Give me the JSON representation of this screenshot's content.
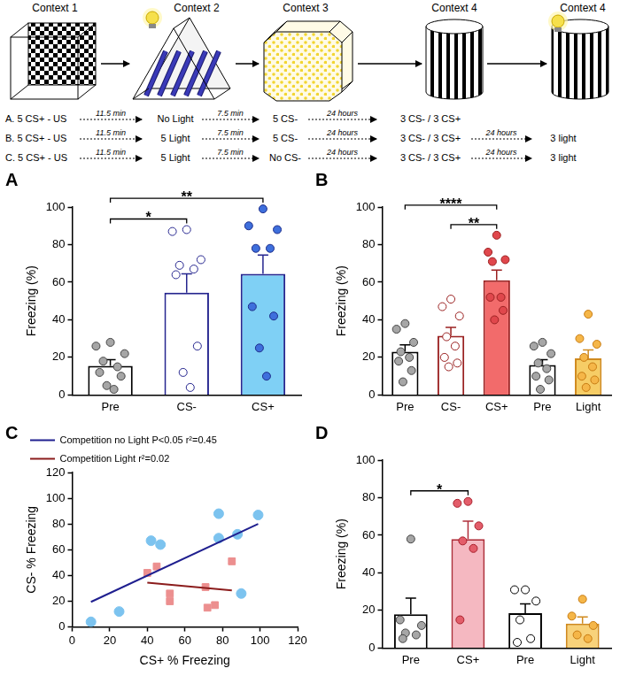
{
  "schematic": {
    "contexts": [
      "Context 1",
      "Context 2",
      "Context 3",
      "Context 4",
      "Context 4"
    ],
    "protocols": [
      {
        "steps": [
          "A. 5 CS+ - US",
          "11.5 min",
          "No Light",
          "7.5 min",
          "5 CS-",
          "24 hours",
          "3 CS- / 3 CS+"
        ]
      },
      {
        "steps": [
          "B. 5 CS+ - US",
          "11.5 min",
          "5 Light",
          "7.5 min",
          "5 CS-",
          "24 hours",
          "3 CS- / 3 CS+",
          "24 hours",
          "3 light"
        ]
      },
      {
        "steps": [
          "C. 5 CS+ - US",
          "11.5 min",
          "5 Light",
          "7.5 min",
          "No CS-",
          "24 hours",
          "3 CS- / 3 CS+",
          "24 hours",
          "3 light"
        ]
      }
    ]
  },
  "chart_data": [
    {
      "panel_label": "A",
      "type": "bar",
      "categories": [
        "Pre",
        "CS-",
        "CS+"
      ],
      "values": [
        15.5,
        54.5,
        64.5
      ],
      "errors": [
        3.3,
        10,
        10
      ],
      "points": [
        [
          28,
          26,
          22,
          18,
          15,
          12,
          10,
          5,
          3
        ],
        [
          88,
          87,
          72,
          69,
          67,
          64,
          26,
          12,
          4
        ],
        [
          99,
          90,
          88,
          78,
          78,
          47,
          42,
          25,
          10
        ]
      ],
      "colors": [
        "#ffffff",
        "#ffffff",
        "#7fd0f5"
      ],
      "y_label": "Freezing (%)",
      "ylim": [
        0,
        100
      ],
      "yticks": [
        0,
        20,
        40,
        60,
        80,
        100
      ],
      "grid": false,
      "annotations": [
        {
          "from": 0,
          "to": 1,
          "text": "*"
        },
        {
          "from": 0,
          "to": 2,
          "text": "**"
        }
      ]
    },
    {
      "panel_label": "B",
      "type": "bar",
      "categories": [
        "Pre",
        "CS-",
        "CS+",
        "Pre",
        "Light"
      ],
      "values": [
        23,
        31.5,
        61,
        16,
        19.5
      ],
      "errors": [
        3.7,
        4.5,
        5.5,
        2.8,
        4.5
      ],
      "points": [
        [
          38,
          35,
          28,
          23,
          20,
          18,
          13,
          7
        ],
        [
          51,
          47,
          42,
          31,
          26,
          20,
          17,
          15
        ],
        [
          85,
          76,
          72,
          71,
          52,
          52,
          45,
          40
        ],
        [
          28,
          26,
          22,
          17,
          14,
          10,
          8,
          3
        ],
        [
          43,
          30,
          27,
          20,
          15,
          10,
          8,
          4
        ]
      ],
      "colors": [
        "#ffffff",
        "#ffffff",
        "#f26b6b",
        "#ffffff",
        "#f6cd66"
      ],
      "y_label": "Freezing (%)",
      "ylim": [
        0,
        100
      ],
      "yticks": [
        0,
        20,
        40,
        60,
        80,
        100
      ],
      "grid": false,
      "annotations": [
        {
          "from": 0,
          "to": 2,
          "text": "****"
        },
        {
          "from": 1,
          "to": 2,
          "text": "**"
        }
      ]
    },
    {
      "panel_label": "C",
      "type": "scatter",
      "x_label": "CS+ % Freezing",
      "y_label": "CS- % Freezing",
      "xlim": [
        0,
        120
      ],
      "xticks": [
        0,
        20,
        40,
        60,
        80,
        100,
        120
      ],
      "ylim": [
        0,
        120
      ],
      "yticks": [
        0,
        20,
        40,
        60,
        80,
        100,
        120
      ],
      "grid": false,
      "legend": "top",
      "series": [
        {
          "name": "Competition no Light P<0.05 r²=0.45",
          "type": "line",
          "color": "#1f1f8f",
          "x": [
            10,
            99
          ],
          "values": [
            19.5,
            80
          ]
        },
        {
          "name": "Competition Light r²=0.02",
          "type": "line",
          "color": "#8b1c1c",
          "x": [
            40,
            85
          ],
          "values": [
            34.5,
            28.5
          ]
        },
        {
          "type": "scatter",
          "marker": "circle",
          "color": "#7cc3ef",
          "x": [
            10,
            25,
            42,
            47,
            78,
            78,
            88,
            90,
            99
          ],
          "values": [
            4,
            12,
            67,
            64,
            88,
            69,
            72,
            26,
            87
          ]
        },
        {
          "type": "scatter",
          "marker": "square",
          "color": "#ec8f8f",
          "x": [
            40,
            45,
            52,
            52,
            71,
            72,
            76,
            85
          ],
          "values": [
            42,
            47,
            26,
            20,
            31,
            15,
            17,
            51
          ]
        }
      ]
    },
    {
      "panel_label": "D",
      "type": "bar",
      "categories": [
        "Pre",
        "CS+",
        "Pre",
        "Light"
      ],
      "values": [
        18,
        58,
        18.5,
        13
      ],
      "errors": [
        8.5,
        9.5,
        5,
        3.5
      ],
      "points": [
        [
          58,
          15,
          12,
          8,
          7,
          5
        ],
        [
          78,
          77,
          65,
          57,
          53,
          15
        ],
        [
          31,
          31,
          25,
          15,
          5,
          3
        ],
        [
          26,
          17,
          12,
          7,
          5
        ]
      ],
      "colors": [
        "#ffffff",
        "#f5b8c1",
        "#ffffff",
        "#f8d27a"
      ],
      "y_label": "Freezing (%)",
      "ylim": [
        0,
        100
      ],
      "yticks": [
        0,
        20,
        40,
        60,
        80,
        100
      ],
      "grid": false,
      "annotations": [
        {
          "from": 0,
          "to": 1,
          "text": "*"
        }
      ]
    }
  ]
}
